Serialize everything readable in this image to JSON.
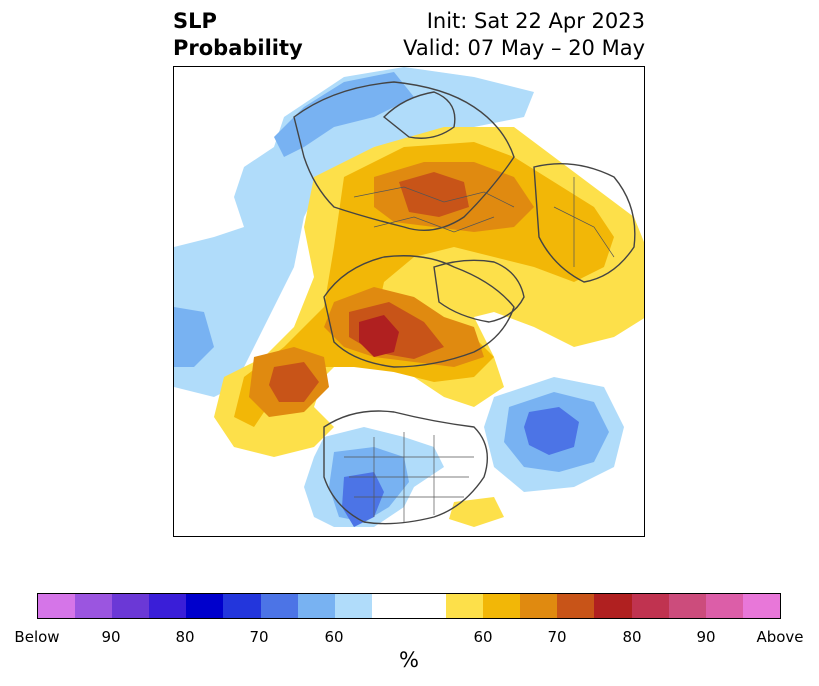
{
  "title": {
    "left_line1": "SLP",
    "left_line2": "Probability",
    "right_line1": "Init: Sat 22 Apr 2023",
    "right_line2": "Valid: 07 May – 20 May"
  },
  "colorbar": {
    "label": "%",
    "colors": [
      "#d575e8",
      "#9b55e0",
      "#6b38d6",
      "#3a1ed8",
      "#0000cc",
      "#2336dc",
      "#4c74e6",
      "#78b2f2",
      "#b0dcfa",
      "#ffffff",
      "#ffffff",
      "#fde04a",
      "#f2b707",
      "#e08a10",
      "#c85418",
      "#b02020",
      "#c03350",
      "#cc4c7c",
      "#dc5ea8",
      "#e877d9"
    ],
    "ticks": [
      "Below",
      "90",
      "80",
      "70",
      "60",
      "60",
      "70",
      "80",
      "90",
      "Above"
    ]
  },
  "legend_colors": {
    "below_60": "#b0dcfa",
    "below_70": "#78b2f2",
    "below_80": "#4c74e6",
    "above_60": "#fde04a",
    "above_70": "#e08a10",
    "above_80": "#b02020"
  }
}
